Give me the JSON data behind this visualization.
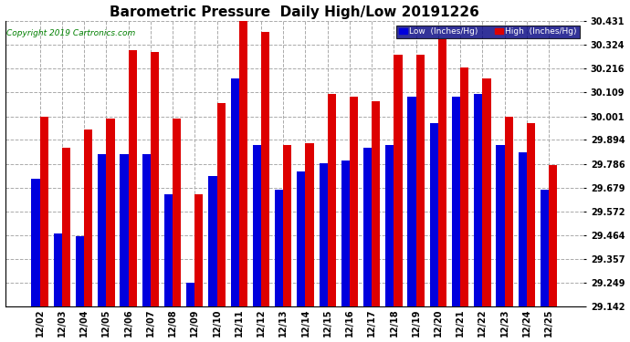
{
  "title": "Barometric Pressure  Daily High/Low 20191226",
  "copyright": "Copyright 2019 Cartronics.com",
  "dates": [
    "12/02",
    "12/03",
    "12/04",
    "12/05",
    "12/06",
    "12/07",
    "12/08",
    "12/09",
    "12/10",
    "12/11",
    "12/12",
    "12/13",
    "12/14",
    "12/15",
    "12/16",
    "12/17",
    "12/18",
    "12/19",
    "12/20",
    "12/21",
    "12/22",
    "12/23",
    "12/24",
    "12/25"
  ],
  "low": [
    29.72,
    29.47,
    29.46,
    29.83,
    29.83,
    29.83,
    29.65,
    29.25,
    29.73,
    30.17,
    29.87,
    29.67,
    29.75,
    29.79,
    29.8,
    29.86,
    29.87,
    30.09,
    29.97,
    30.09,
    30.1,
    29.87,
    29.84,
    29.67
  ],
  "high": [
    30.0,
    29.86,
    29.94,
    29.99,
    30.3,
    30.29,
    29.99,
    29.65,
    30.06,
    30.43,
    30.38,
    29.87,
    29.88,
    30.1,
    30.09,
    30.07,
    30.28,
    30.28,
    30.35,
    30.22,
    30.17,
    30.0,
    29.97,
    29.78
  ],
  "ymin": 29.142,
  "ymax": 30.431,
  "yticks": [
    29.142,
    29.249,
    29.357,
    29.464,
    29.572,
    29.679,
    29.786,
    29.894,
    30.001,
    30.109,
    30.216,
    30.324,
    30.431
  ],
  "low_color": "#0000dd",
  "high_color": "#dd0000",
  "bg_color": "#ffffff",
  "grid_color": "#aaaaaa",
  "title_fontsize": 11,
  "tick_fontsize": 7,
  "bar_width": 0.38
}
